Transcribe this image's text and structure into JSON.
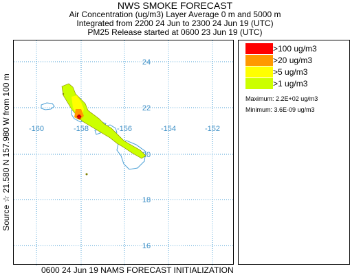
{
  "title": {
    "main": "NWS SMOKE FORECAST",
    "line1": "Air Concentration (ug/m3) Layer Average    0 m and  5000 m",
    "line2": "Integrated from 2200 24 Jun to 2300 24 Jun 19 (UTC)",
    "line3": "PM25 Release started at 0600 23 Jun 19 (UTC)"
  },
  "map": {
    "lon_labels": [
      "-160",
      "-158",
      "-156",
      "-154",
      "-152"
    ],
    "lat_labels": [
      "24",
      "22",
      "20",
      "18",
      "16"
    ]
  },
  "legend": {
    "levels": [
      {
        "label": ">100 ug/m3",
        "color": "#ff0000"
      },
      {
        "label": ">20 ug/m3",
        "color": "#ff9900"
      },
      {
        "label": ">5 ug/m3",
        "color": "#ffff00"
      },
      {
        "label": ">1 ug/m3",
        "color": "#ccff00"
      }
    ],
    "maximum": "Maximum: 2.2E+02 ug/m3",
    "minimum": "Minimum: 3.6E-09 ug/m3"
  },
  "bottom_caption": "0600 24 Jun 19 NAMS FORECAST INITIALIZATION",
  "side_caption": "Source ☆  21.580  N 157.980  W      from  100 m",
  "colors": {
    "grid": "#4a9fd5",
    "coast": "#4a9fd5",
    "labels": "#3d8fc6"
  }
}
